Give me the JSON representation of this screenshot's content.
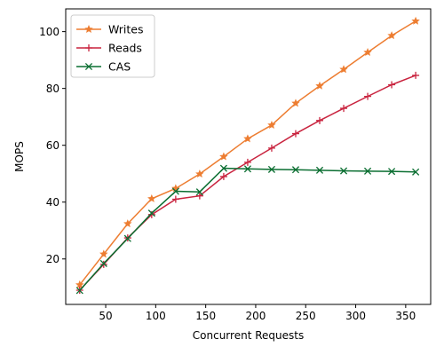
{
  "chart_data": {
    "type": "line",
    "xlabel": "Concurrent Requests",
    "ylabel": "MOPS",
    "xlim": [
      10,
      375
    ],
    "ylim": [
      4,
      108
    ],
    "xticks": [
      50,
      100,
      150,
      200,
      250,
      300,
      350
    ],
    "yticks": [
      20,
      40,
      60,
      80,
      100
    ],
    "grid": false,
    "legend_position": "top-left",
    "x": [
      24,
      48,
      72,
      96,
      120,
      144,
      168,
      192,
      216,
      240,
      264,
      288,
      312,
      336,
      360
    ],
    "series": [
      {
        "name": "Writes",
        "color": "#ed7d31",
        "marker": "star",
        "values": [
          10.9,
          21.7,
          32.4,
          41.2,
          44.8,
          49.9,
          56.0,
          62.3,
          67.1,
          74.8,
          80.9,
          86.7,
          92.7,
          98.6,
          103.7
        ]
      },
      {
        "name": "Reads",
        "color": "#c9243f",
        "marker": "plus",
        "values": [
          9.0,
          18.1,
          27.4,
          35.6,
          41.0,
          42.2,
          49.0,
          54.0,
          59.0,
          64.1,
          68.7,
          73.0,
          77.2,
          81.3,
          84.6
        ]
      },
      {
        "name": "CAS",
        "color": "#0a6e31",
        "marker": "x",
        "values": [
          8.9,
          18.4,
          27.2,
          36.1,
          43.8,
          43.6,
          51.9,
          51.7,
          51.5,
          51.4,
          51.2,
          51.0,
          50.9,
          50.8,
          50.6
        ]
      }
    ]
  }
}
